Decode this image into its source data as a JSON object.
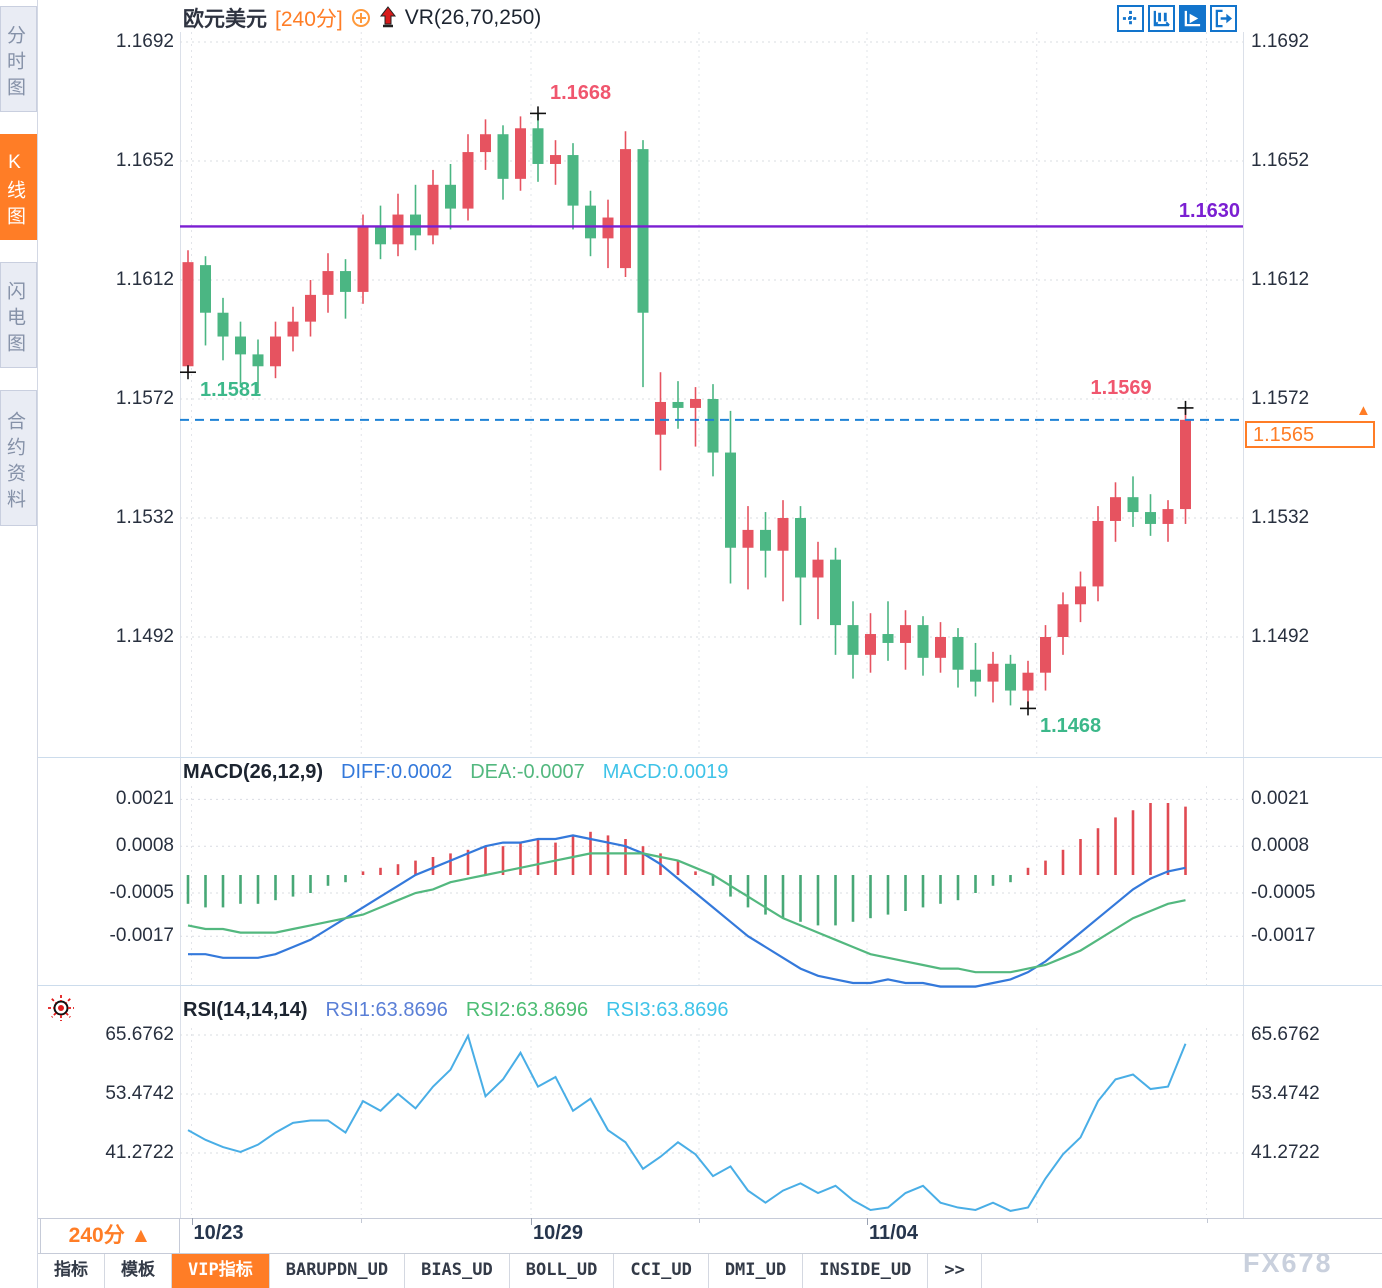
{
  "header": {
    "symbol": "欧元美元",
    "period": "[240分]",
    "indicator": "VR(26,70,250)"
  },
  "toolbar": {
    "buttons": [
      {
        "icon": "pan-crosshair",
        "active": false
      },
      {
        "icon": "axis-candle",
        "active": false
      },
      {
        "icon": "axis-play",
        "active": true
      },
      {
        "icon": "exit-right",
        "active": false
      }
    ]
  },
  "sidebar": {
    "items": [
      {
        "label": "分时图",
        "active": false
      },
      {
        "label": "K线图",
        "active": true
      },
      {
        "label": "闪电图",
        "active": false
      },
      {
        "label": "合约资料",
        "active": false
      }
    ]
  },
  "price_box": {
    "value": "1.1565"
  },
  "period_box": {
    "label": "240分",
    "arrow": "▲"
  },
  "xaxis": {
    "ticks": [
      {
        "label": "10/23",
        "i": 0.2
      },
      {
        "label": "10/29",
        "i": 19.6
      },
      {
        "label": "11/04",
        "i": 38.8
      }
    ]
  },
  "bottom_tabs": {
    "items": [
      {
        "label": "指标",
        "active": false
      },
      {
        "label": "模板",
        "active": false
      },
      {
        "label": "VIP指标",
        "active": true
      },
      {
        "label": "BARUPDN_UD",
        "active": false
      },
      {
        "label": "BIAS_UD",
        "active": false
      },
      {
        "label": "BOLL_UD",
        "active": false
      },
      {
        "label": "CCI_UD",
        "active": false
      },
      {
        "label": "DMI_UD",
        "active": false
      },
      {
        "label": "INSIDE_UD",
        "active": false
      },
      {
        "label": ">>",
        "active": false
      }
    ]
  },
  "watermark": "FX678",
  "colors": {
    "up": "#e65360",
    "down": "#4bb683",
    "accent": "#ff7d26",
    "purple_line": "#7b1fd2",
    "price_line": "#1e82d6",
    "diff_blue": "#3479db",
    "dea_green": "#53b87f",
    "rsi_line": "#49aee6",
    "label_dark": "#28303f",
    "high_label": "#f0566e",
    "low_label": "#3cb88a"
  },
  "chart_data": [
    {
      "type": "candlestick",
      "title": "欧元美元 240分",
      "yticks": [
        1.1692,
        1.1652,
        1.1612,
        1.1572,
        1.1532,
        1.1492
      ],
      "ylim": [
        1.1455,
        1.1695
      ],
      "ohlc": [
        [
          1.1583,
          1.1622,
          1.1581,
          1.1618
        ],
        [
          1.1617,
          1.162,
          1.159,
          1.1601
        ],
        [
          1.1601,
          1.1606,
          1.1585,
          1.1593
        ],
        [
          1.1593,
          1.1598,
          1.1576,
          1.1587
        ],
        [
          1.1587,
          1.1592,
          1.1574,
          1.1583
        ],
        [
          1.1583,
          1.1598,
          1.1579,
          1.1593
        ],
        [
          1.1593,
          1.1603,
          1.1588,
          1.1598
        ],
        [
          1.1598,
          1.1612,
          1.1593,
          1.1607
        ],
        [
          1.1607,
          1.1621,
          1.1601,
          1.1615
        ],
        [
          1.1615,
          1.1619,
          1.1599,
          1.1608
        ],
        [
          1.1608,
          1.1634,
          1.1604,
          1.163
        ],
        [
          1.163,
          1.1637,
          1.1619,
          1.1624
        ],
        [
          1.1624,
          1.1641,
          1.162,
          1.1634
        ],
        [
          1.1634,
          1.1644,
          1.1622,
          1.1627
        ],
        [
          1.1627,
          1.1649,
          1.1624,
          1.1644
        ],
        [
          1.1644,
          1.1651,
          1.1629,
          1.1636
        ],
        [
          1.1636,
          1.1661,
          1.1632,
          1.1655
        ],
        [
          1.1655,
          1.1666,
          1.1649,
          1.1661
        ],
        [
          1.1661,
          1.1664,
          1.1639,
          1.1646
        ],
        [
          1.1646,
          1.1667,
          1.1642,
          1.1663
        ],
        [
          1.1663,
          1.1668,
          1.1645,
          1.1651
        ],
        [
          1.1651,
          1.1659,
          1.1644,
          1.1654
        ],
        [
          1.1654,
          1.1658,
          1.1629,
          1.1637
        ],
        [
          1.1637,
          1.1642,
          1.162,
          1.1626
        ],
        [
          1.1626,
          1.1639,
          1.1616,
          1.1633
        ],
        [
          1.1616,
          1.1662,
          1.1613,
          1.1656
        ],
        [
          1.1656,
          1.1659,
          1.1576,
          1.1601
        ],
        [
          1.156,
          1.1581,
          1.1548,
          1.1571
        ],
        [
          1.1571,
          1.1578,
          1.1562,
          1.1569
        ],
        [
          1.1569,
          1.1576,
          1.1556,
          1.1572
        ],
        [
          1.1572,
          1.1577,
          1.1546,
          1.1554
        ],
        [
          1.1554,
          1.1568,
          1.151,
          1.1522
        ],
        [
          1.1522,
          1.1536,
          1.1508,
          1.1528
        ],
        [
          1.1528,
          1.1534,
          1.1512,
          1.1521
        ],
        [
          1.1521,
          1.1538,
          1.1504,
          1.1532
        ],
        [
          1.1532,
          1.1536,
          1.1496,
          1.1512
        ],
        [
          1.1512,
          1.1524,
          1.1498,
          1.1518
        ],
        [
          1.1518,
          1.1522,
          1.1486,
          1.1496
        ],
        [
          1.1496,
          1.1504,
          1.1478,
          1.1486
        ],
        [
          1.1486,
          1.15,
          1.148,
          1.1493
        ],
        [
          1.1493,
          1.1504,
          1.1484,
          1.149
        ],
        [
          1.149,
          1.1501,
          1.1481,
          1.1496
        ],
        [
          1.1496,
          1.1499,
          1.1479,
          1.1485
        ],
        [
          1.1485,
          1.1497,
          1.148,
          1.1492
        ],
        [
          1.1492,
          1.1495,
          1.1475,
          1.1481
        ],
        [
          1.1481,
          1.149,
          1.1472,
          1.1477
        ],
        [
          1.1477,
          1.1487,
          1.147,
          1.1483
        ],
        [
          1.1483,
          1.1486,
          1.1469,
          1.1474
        ],
        [
          1.1474,
          1.1484,
          1.1468,
          1.148
        ],
        [
          1.148,
          1.1496,
          1.1474,
          1.1492
        ],
        [
          1.1492,
          1.1507,
          1.1486,
          1.1503
        ],
        [
          1.1503,
          1.1514,
          1.1497,
          1.1509
        ],
        [
          1.1509,
          1.1536,
          1.1504,
          1.1531
        ],
        [
          1.1531,
          1.1544,
          1.1524,
          1.1539
        ],
        [
          1.1539,
          1.1546,
          1.1529,
          1.1534
        ],
        [
          1.1534,
          1.154,
          1.1526,
          1.153
        ],
        [
          1.153,
          1.1538,
          1.1524,
          1.1535
        ],
        [
          1.1535,
          1.1569,
          1.153,
          1.1565
        ]
      ],
      "overlays": {
        "horizontal_line": {
          "value": 1.163,
          "label": "1.1630"
        },
        "current_price_line": {
          "value": 1.1565
        }
      },
      "annotations": [
        {
          "text": "1.1581",
          "price": 1.1581,
          "i": 0,
          "kind": "low"
        },
        {
          "text": "1.1668",
          "price": 1.1668,
          "i": 20,
          "kind": "high"
        },
        {
          "text": "1.1468",
          "price": 1.1468,
          "i": 48,
          "kind": "low"
        },
        {
          "text": "1.1569",
          "price": 1.1569,
          "i": 57,
          "kind": "high"
        }
      ]
    },
    {
      "type": "macd",
      "legend": [
        {
          "text": "MACD(26,12,9)",
          "color": "#1c2430"
        },
        {
          "text": "DIFF:0.0002",
          "color": "#3479db"
        },
        {
          "text": "DEA:-0.0007",
          "color": "#53b87f"
        },
        {
          "text": "MACD:0.0019",
          "color": "#3fc3e8"
        }
      ],
      "yticks": [
        0.0021,
        0.0008,
        -0.0005,
        -0.0017
      ],
      "hist": [
        -0.0008,
        -0.0009,
        -0.0009,
        -0.0008,
        -0.0008,
        -0.0007,
        -0.0006,
        -0.0005,
        -0.0003,
        -0.0002,
        0.0001,
        0.0002,
        0.0003,
        0.0004,
        0.0005,
        0.0006,
        0.0007,
        0.0008,
        0.0008,
        0.0009,
        0.001,
        0.0009,
        0.0011,
        0.0012,
        0.0011,
        0.001,
        0.0008,
        0.0006,
        0.0004,
        0.0001,
        -0.0003,
        -0.0006,
        -0.0009,
        -0.0011,
        -0.0012,
        -0.0013,
        -0.0014,
        -0.0014,
        -0.0013,
        -0.0012,
        -0.0011,
        -0.001,
        -0.0009,
        -0.0008,
        -0.0007,
        -0.0005,
        -0.0003,
        -0.0002,
        0.0002,
        0.0004,
        0.0007,
        0.001,
        0.0013,
        0.0016,
        0.0018,
        0.002,
        0.002,
        0.0019
      ],
      "diff": [
        -0.0022,
        -0.0022,
        -0.0023,
        -0.0023,
        -0.0023,
        -0.0022,
        -0.002,
        -0.0018,
        -0.0015,
        -0.0012,
        -0.0009,
        -0.0006,
        -0.0003,
        0.0,
        0.0002,
        0.0004,
        0.0006,
        0.0008,
        0.0009,
        0.0009,
        0.001,
        0.001,
        0.0011,
        0.001,
        0.0009,
        0.0008,
        0.0006,
        0.0003,
        -0.0001,
        -0.0005,
        -0.0009,
        -0.0013,
        -0.0017,
        -0.002,
        -0.0023,
        -0.0026,
        -0.0028,
        -0.0029,
        -0.003,
        -0.003,
        -0.0029,
        -0.003,
        -0.003,
        -0.0031,
        -0.0031,
        -0.0031,
        -0.003,
        -0.0029,
        -0.0027,
        -0.0024,
        -0.002,
        -0.0016,
        -0.0012,
        -0.0008,
        -0.0004,
        -0.0001,
        0.0001,
        0.0002
      ],
      "dea": [
        -0.0014,
        -0.0015,
        -0.0015,
        -0.0016,
        -0.0016,
        -0.0016,
        -0.0015,
        -0.0014,
        -0.0013,
        -0.0012,
        -0.0011,
        -0.0009,
        -0.0007,
        -0.0005,
        -0.0004,
        -0.0002,
        -0.0001,
        0.0,
        0.0001,
        0.0002,
        0.0003,
        0.0004,
        0.0005,
        0.0006,
        0.0006,
        0.0006,
        0.0006,
        0.0005,
        0.0004,
        0.0002,
        0.0,
        -0.0003,
        -0.0006,
        -0.0009,
        -0.0012,
        -0.0014,
        -0.0016,
        -0.0018,
        -0.002,
        -0.0022,
        -0.0023,
        -0.0024,
        -0.0025,
        -0.0026,
        -0.0026,
        -0.0027,
        -0.0027,
        -0.0027,
        -0.0026,
        -0.0025,
        -0.0023,
        -0.0021,
        -0.0018,
        -0.0015,
        -0.0012,
        -0.001,
        -0.0008,
        -0.0007
      ]
    },
    {
      "type": "line",
      "legend": [
        {
          "text": "RSI(14,14,14)",
          "color": "#1c2430"
        },
        {
          "text": "RSI1:63.8696",
          "color": "#5a7fd6"
        },
        {
          "text": "RSI2:63.8696",
          "color": "#4dbd74"
        },
        {
          "text": "RSI3:63.8696",
          "color": "#3fc3e8"
        }
      ],
      "yticks": [
        65.6762,
        53.4742,
        41.2722
      ],
      "values": [
        46,
        44,
        42.5,
        41.5,
        43,
        45.5,
        47.5,
        48,
        48,
        45.5,
        52,
        50,
        53.5,
        50.5,
        55,
        58.5,
        65.5,
        53,
        56.5,
        62,
        55,
        57,
        50,
        52.5,
        46,
        43.5,
        38,
        40.5,
        43.5,
        41,
        36.5,
        38.5,
        33.5,
        31,
        33.5,
        35,
        33,
        34.5,
        31.5,
        29.5,
        30,
        33,
        34.5,
        31,
        30,
        29.5,
        31,
        29.3,
        30,
        36,
        41,
        44.5,
        52,
        56.5,
        57.5,
        54.5,
        55,
        63.87
      ]
    }
  ]
}
